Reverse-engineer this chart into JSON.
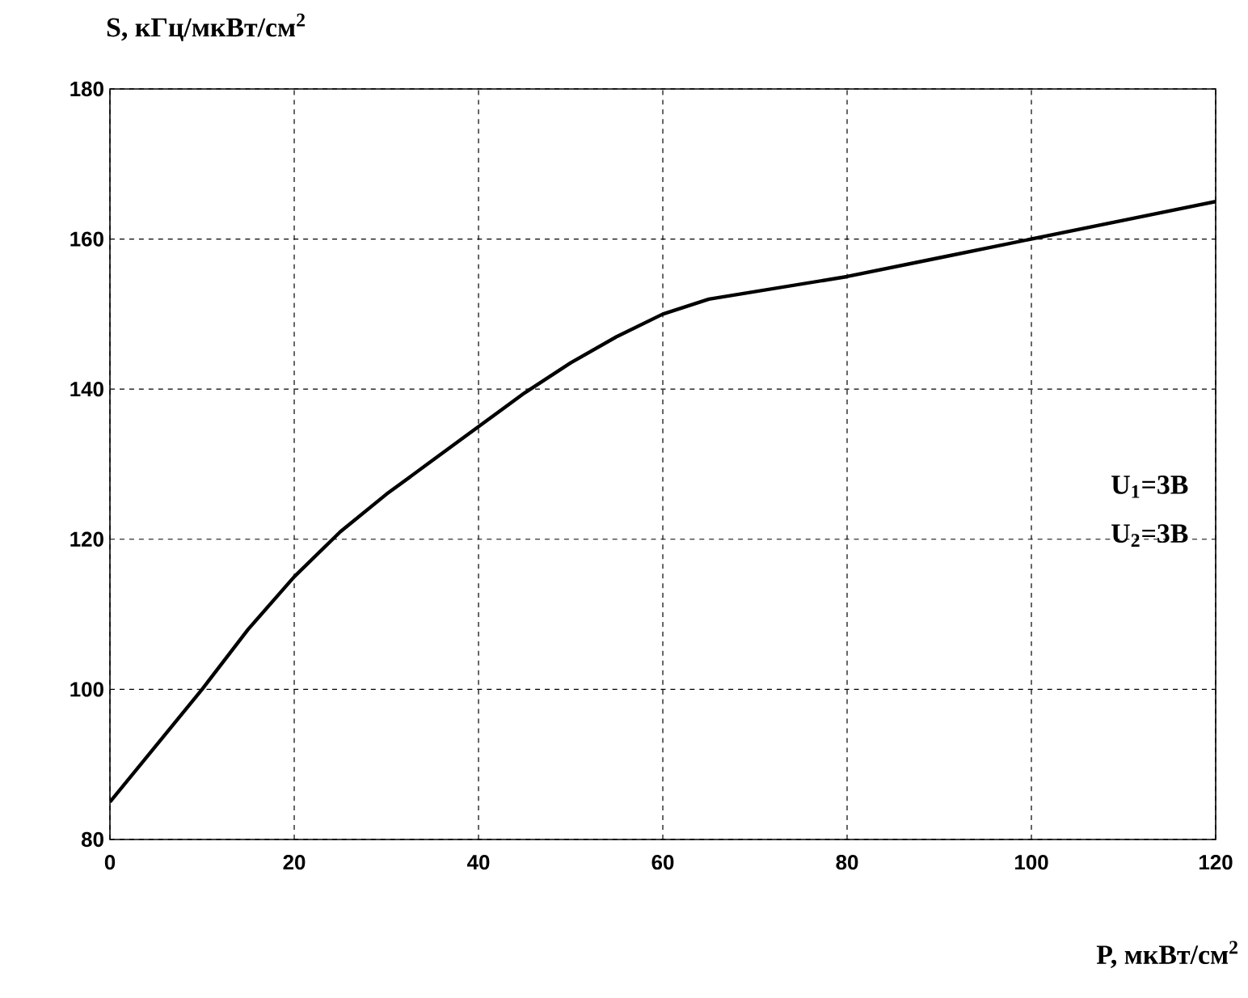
{
  "chart_data": {
    "type": "line",
    "xlabel": "P, мкВт/см$^{2}$",
    "ylabel": "S, кГц/мкВт/см$^{2}$",
    "x": [
      0,
      5,
      10,
      15,
      20,
      25,
      30,
      35,
      40,
      45,
      50,
      55,
      60,
      65,
      70,
      80,
      90,
      100,
      110,
      120
    ],
    "series": [
      {
        "color": "#000000",
        "values": [
          85,
          92.5,
          100,
          108,
          115,
          121,
          126,
          130.5,
          135,
          139.5,
          143.5,
          147,
          150,
          152,
          153,
          155,
          157.5,
          160,
          162.5,
          165
        ]
      }
    ],
    "xlim": [
      0,
      120
    ],
    "ylim": [
      80,
      180
    ],
    "xticks": [
      0,
      20,
      40,
      60,
      80,
      100,
      120
    ],
    "yticks": [
      80,
      100,
      120,
      140,
      160,
      180
    ],
    "grid": true,
    "marker": "none",
    "line_style": "solid",
    "annotations": [
      "U$_{1}$=3В",
      "U$_{2}$=3В"
    ]
  }
}
